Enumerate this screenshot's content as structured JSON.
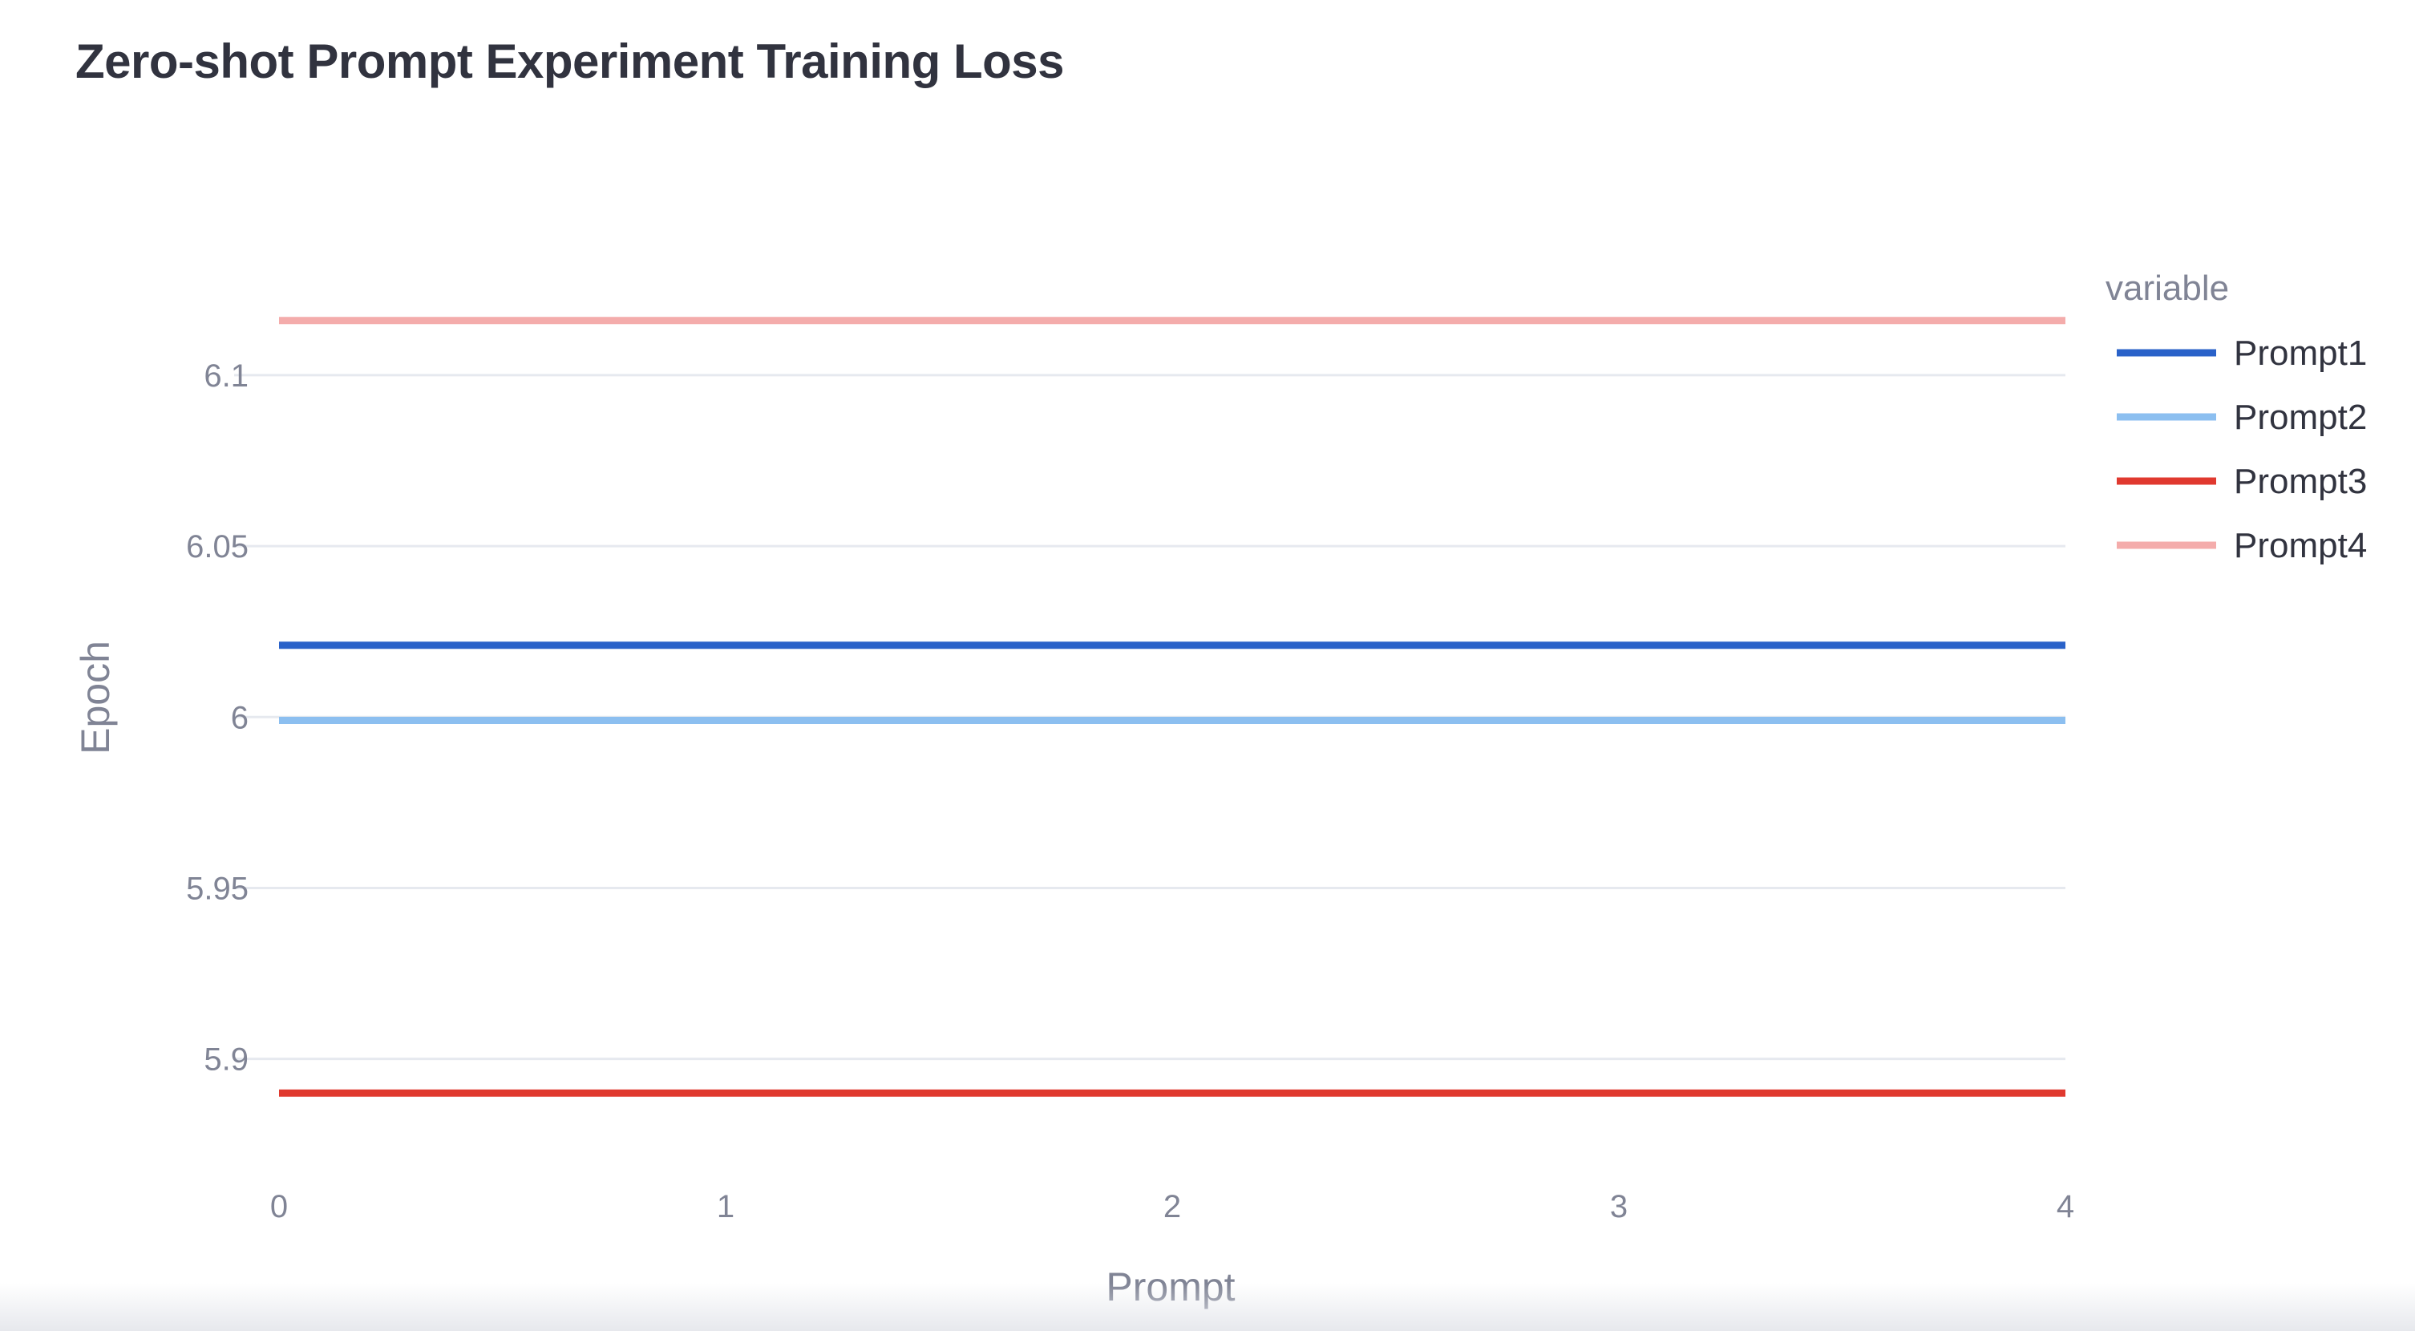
{
  "title": "Zero-shot Prompt Experiment Training Loss",
  "chart_data": {
    "type": "line",
    "title": "Zero-shot Prompt Experiment Training Loss",
    "xlabel": "Prompt",
    "ylabel": "Epoch",
    "x": [
      0,
      1,
      2,
      3,
      4
    ],
    "xlim": [
      0,
      4
    ],
    "ylim": [
      5.872,
      6.13
    ],
    "x_ticks": [
      "0",
      "1",
      "2",
      "3",
      "4"
    ],
    "y_ticks": [
      5.9,
      5.95,
      6,
      6.05,
      6.1
    ],
    "y_tick_labels": [
      "5.9",
      "5.95",
      "6",
      "6.05",
      "6.1"
    ],
    "grid": "horizontal",
    "legend": {
      "title": "variable",
      "placement": "right"
    },
    "series": [
      {
        "name": "Prompt1",
        "color": "#2a62c9",
        "values": [
          6.021,
          6.021,
          6.021,
          6.021,
          6.021
        ]
      },
      {
        "name": "Prompt2",
        "color": "#8cbff0",
        "values": [
          5.999,
          5.999,
          5.999,
          5.999,
          5.999
        ]
      },
      {
        "name": "Prompt3",
        "color": "#e0392f",
        "values": [
          5.89,
          5.89,
          5.89,
          5.89,
          5.89
        ]
      },
      {
        "name": "Prompt4",
        "color": "#f4acab",
        "values": [
          6.116,
          6.116,
          6.116,
          6.116,
          6.116
        ]
      }
    ]
  }
}
